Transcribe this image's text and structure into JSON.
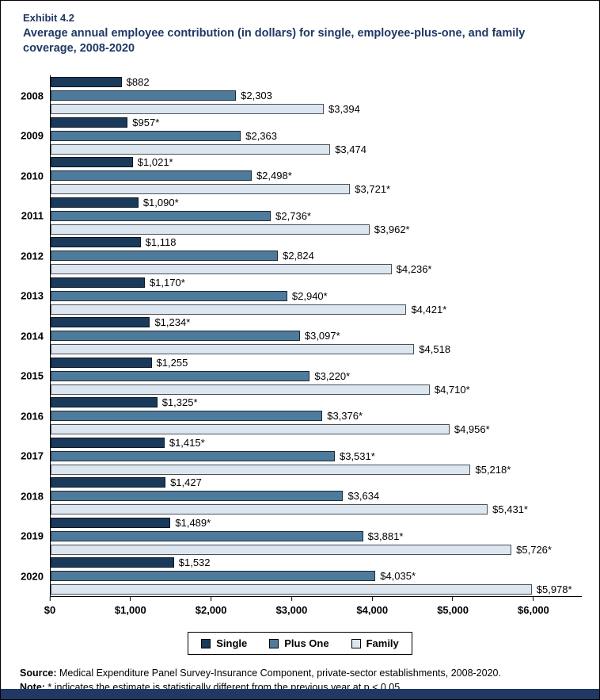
{
  "header": {
    "exhibit": "Exhibit 4.2",
    "title": "Average annual employee contribution (in dollars) for single, employee-plus-one, and family coverage, 2008-2020"
  },
  "chart_data": {
    "type": "bar",
    "orientation": "horizontal",
    "title": "Average annual employee contribution (in dollars) for single, employee-plus-one, and family coverage, 2008-2020",
    "categories": [
      "2008",
      "2009",
      "2010",
      "2011",
      "2012",
      "2013",
      "2014",
      "2015",
      "2016",
      "2017",
      "2018",
      "2019",
      "2020"
    ],
    "series": [
      {
        "name": "Single",
        "color": "#1a3a5c",
        "values": [
          882,
          957,
          1021,
          1090,
          1118,
          1170,
          1234,
          1255,
          1325,
          1415,
          1427,
          1489,
          1532
        ],
        "labels": [
          "$882",
          "$957*",
          "$1,021*",
          "$1,090*",
          "$1,118",
          "$1,170*",
          "$1,234*",
          "$1,255",
          "$1,325*",
          "$1,415*",
          "$1,427",
          "$1,489*",
          "$1,532"
        ]
      },
      {
        "name": "Plus One",
        "color": "#4e7a9c",
        "values": [
          2303,
          2363,
          2498,
          2736,
          2824,
          2940,
          3097,
          3220,
          3376,
          3531,
          3634,
          3881,
          4035
        ],
        "labels": [
          "$2,303",
          "$2,363",
          "$2,498*",
          "$2,736*",
          "$2,824",
          "$2,940*",
          "$3,097*",
          "$3,220*",
          "$3,376*",
          "$3,531*",
          "$3,634",
          "$3,881*",
          "$4,035*"
        ]
      },
      {
        "name": "Family",
        "color": "#dce6f0",
        "values": [
          3394,
          3474,
          3721,
          3962,
          4236,
          4421,
          4518,
          4710,
          4956,
          5218,
          5431,
          5726,
          5978
        ],
        "labels": [
          "$3,394",
          "$3,474",
          "$3,721*",
          "$3,962*",
          "$4,236*",
          "$4,421*",
          "$4,518",
          "$4,710*",
          "$4,956*",
          "$5,218*",
          "$5,431*",
          "$5,726*",
          "$5,978*"
        ]
      }
    ],
    "xlabel": "",
    "ylabel": "",
    "axis": {
      "max": 6600,
      "ticks": [
        {
          "value": 0,
          "label": "$0"
        },
        {
          "value": 1000,
          "label": "$1,000"
        },
        {
          "value": 2000,
          "label": "$2,000"
        },
        {
          "value": 3000,
          "label": "$3,000"
        },
        {
          "value": 4000,
          "label": "$4,000"
        },
        {
          "value": 5000,
          "label": "$5,000"
        },
        {
          "value": 6000,
          "label": "$6,000"
        }
      ]
    },
    "grid": false,
    "legend_position": "bottom",
    "legend_entries": [
      "Single",
      "Plus One",
      "Family"
    ]
  },
  "footer": {
    "source_label": "Source:",
    "source_text": " Medical Expenditure Panel Survey-Insurance Component, private-sector establishments, 2008-2020.",
    "note_label": "Note:",
    "note_text": " * indicates the estimate is statistically different from the previous year at p < 0.05."
  },
  "colors": {
    "title": "#1f3864",
    "single": "#1a3a5c",
    "plus_one": "#4e7a9c",
    "family": "#dce6f0",
    "bottom_bar": "#1f3864"
  }
}
